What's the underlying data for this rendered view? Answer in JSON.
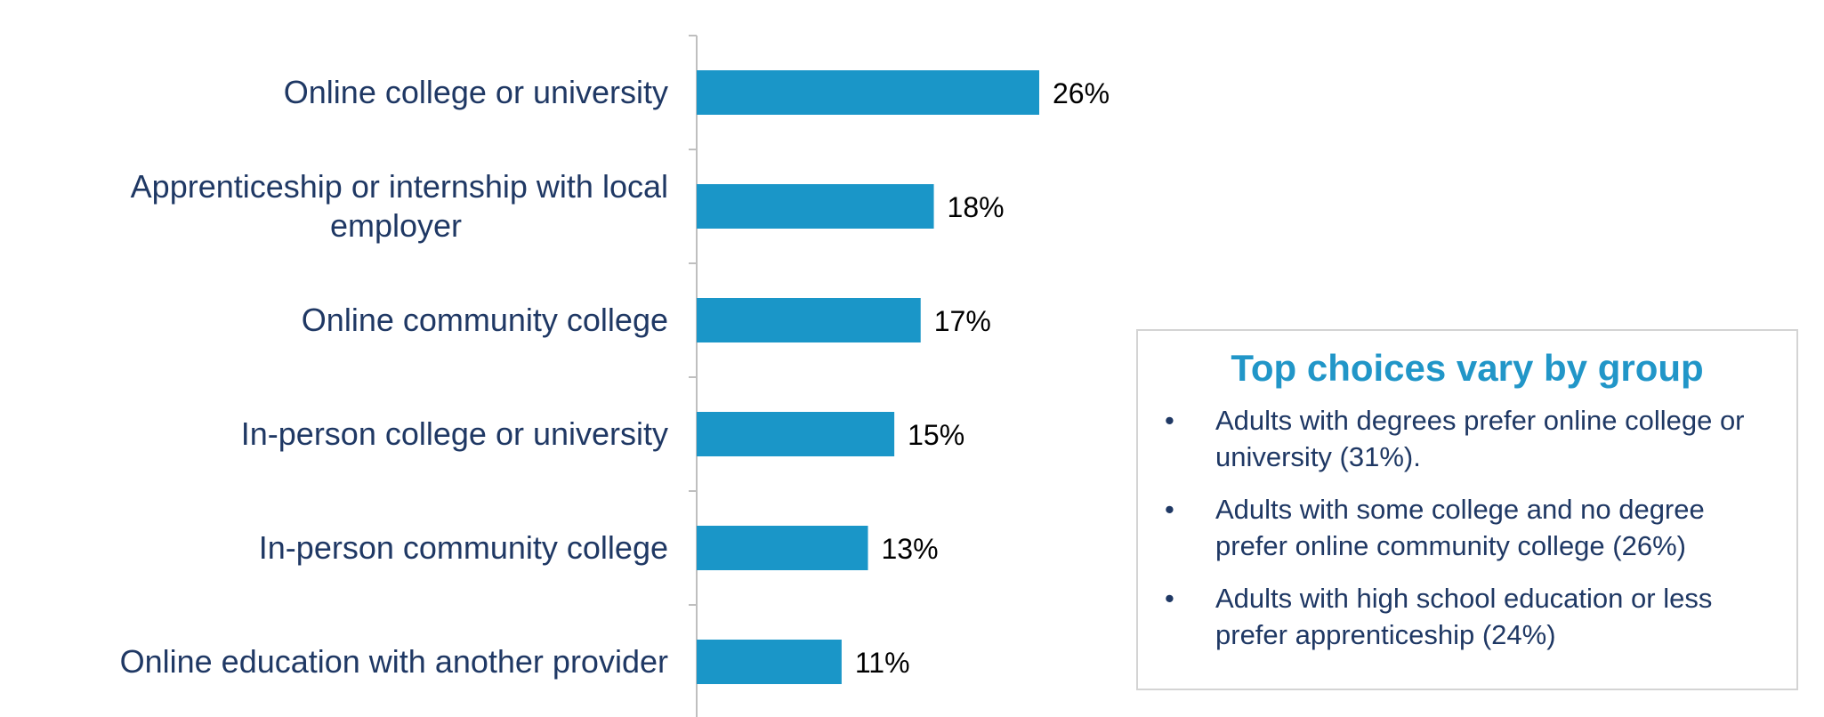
{
  "chart_data": {
    "type": "bar",
    "orientation": "horizontal",
    "categories": [
      [
        "Online college or university"
      ],
      [
        "Apprenticeship or internship with local",
        "employer"
      ],
      [
        "Online community college"
      ],
      [
        "In-person college or university"
      ],
      [
        "In-person community college"
      ],
      [
        "Online education with another provider"
      ]
    ],
    "values": [
      26,
      18,
      17,
      15,
      13,
      11
    ],
    "value_labels": [
      "26%",
      "18%",
      "17%",
      "15%",
      "13%",
      "11%"
    ],
    "xlim": [
      0,
      29
    ],
    "title": "",
    "xlabel": "",
    "ylabel": "",
    "grid": false,
    "bar_color": "#1a96c8"
  },
  "callout": {
    "title": "Top choices vary by group",
    "bullets": [
      "Adults with degrees prefer online college or university (31%).",
      "Adults with some college and no degree prefer online community college (26%)",
      "Adults with high school education or less prefer apprenticeship (24%)"
    ]
  },
  "colors": {
    "accent": "#2196c8",
    "label_text": "#1f3864",
    "axis": "#bfbfbf"
  }
}
